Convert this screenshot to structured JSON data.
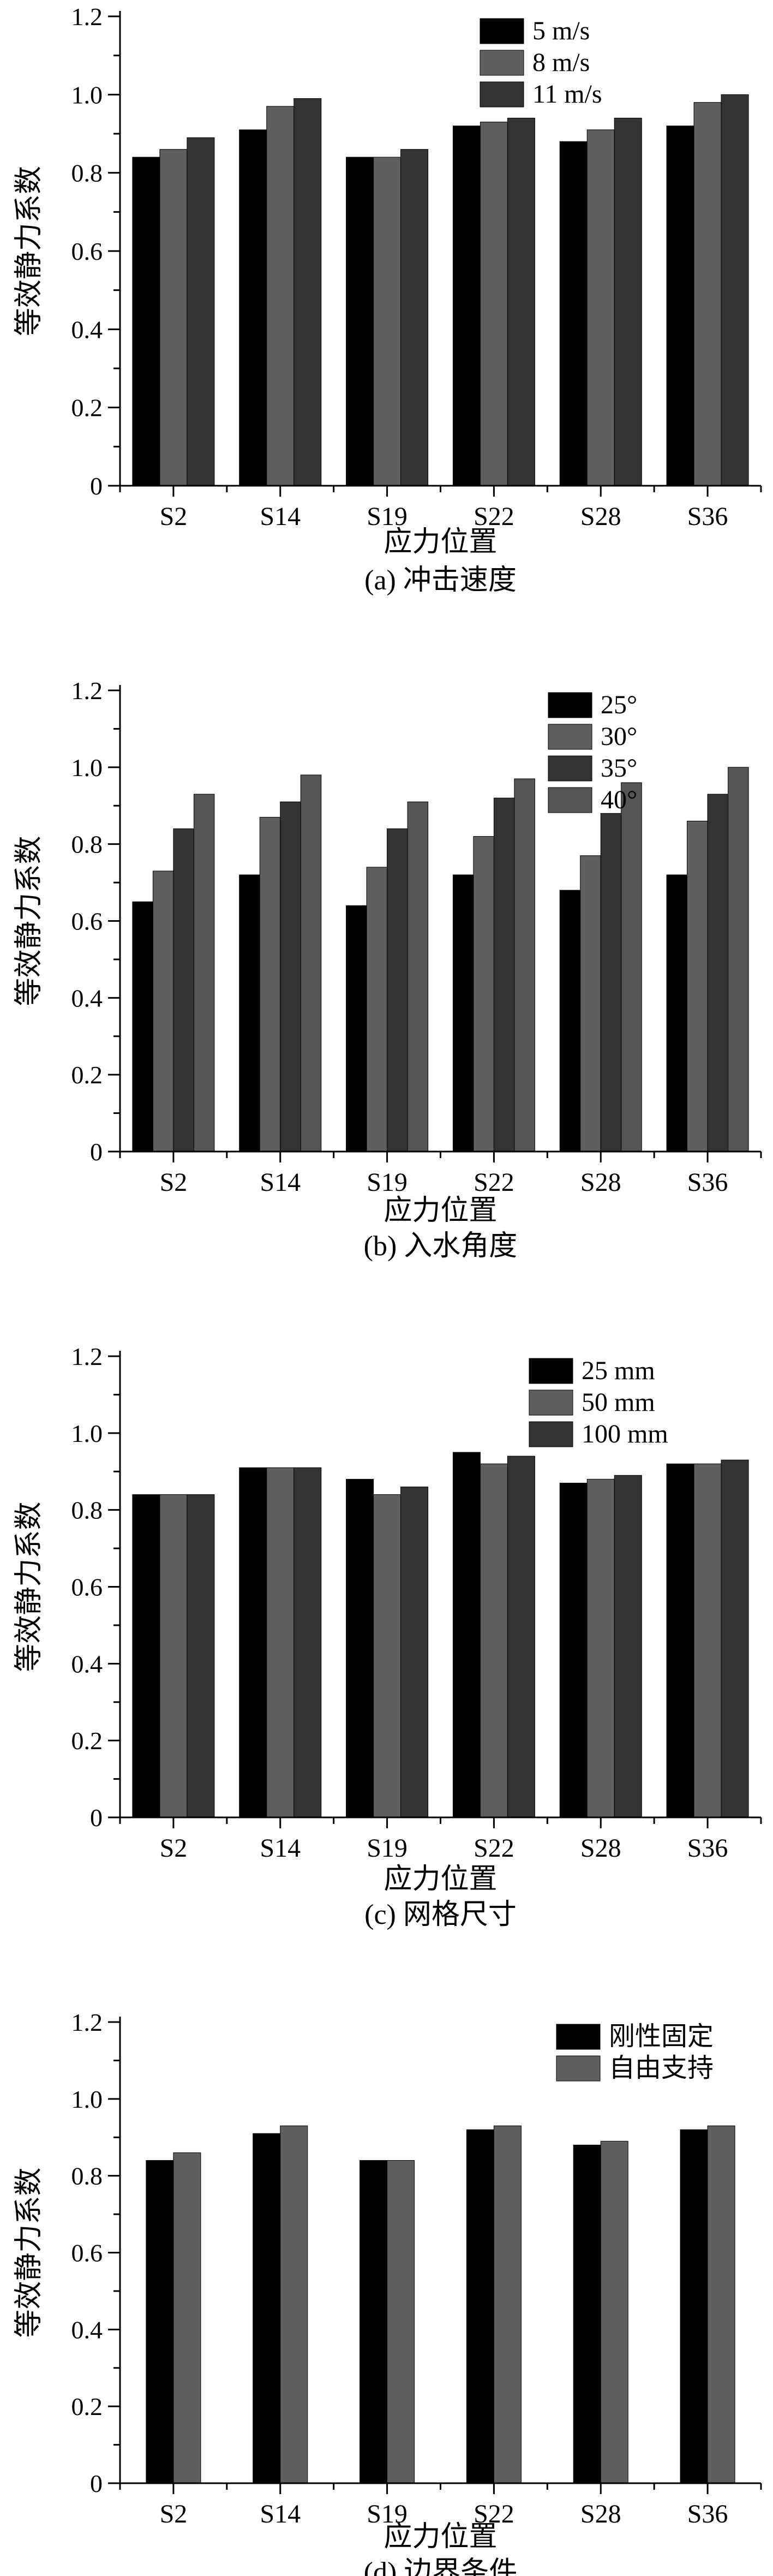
{
  "colors": {
    "s1": "#000000",
    "s2": "#5f5f5f",
    "s3": "#333333",
    "s4": "#555555",
    "axis": "#000000"
  },
  "chart_data": [
    {
      "type": "bar",
      "caption": "(a) 冲击速度",
      "xlabel": "应力位置",
      "ylabel": "等效静力系数",
      "categories": [
        "S2",
        "S14",
        "S19",
        "S22",
        "S28",
        "S36"
      ],
      "ylim": [
        0,
        1.2
      ],
      "yticks": [
        "0",
        "0.2",
        "0.4",
        "0.6",
        "0.8",
        "1.0",
        "1.2"
      ],
      "legend_position": "top-right",
      "series": [
        {
          "name": "5 m/s",
          "values": [
            0.84,
            0.91,
            0.84,
            0.92,
            0.88,
            0.92
          ]
        },
        {
          "name": "8 m/s",
          "values": [
            0.86,
            0.97,
            0.84,
            0.93,
            0.91,
            0.98
          ]
        },
        {
          "name": "11 m/s",
          "values": [
            0.89,
            0.99,
            0.86,
            0.94,
            0.94,
            1.0
          ]
        }
      ]
    },
    {
      "type": "bar",
      "caption": "(b) 入水角度",
      "xlabel": "应力位置",
      "ylabel": "等效静力系数",
      "categories": [
        "S2",
        "S14",
        "S19",
        "S22",
        "S28",
        "S36"
      ],
      "ylim": [
        0,
        1.2
      ],
      "yticks": [
        "0",
        "0.2",
        "0.4",
        "0.6",
        "0.8",
        "1.0",
        "1.2"
      ],
      "legend_position": "top-left",
      "series": [
        {
          "name": "25°",
          "values": [
            0.65,
            0.72,
            0.64,
            0.72,
            0.68,
            0.72
          ]
        },
        {
          "name": "30°",
          "values": [
            0.73,
            0.87,
            0.74,
            0.82,
            0.77,
            0.86
          ]
        },
        {
          "name": "35°",
          "values": [
            0.84,
            0.91,
            0.84,
            0.92,
            0.88,
            0.93
          ]
        },
        {
          "name": "40°",
          "values": [
            0.93,
            0.98,
            0.91,
            0.97,
            0.96,
            1.0
          ]
        }
      ]
    },
    {
      "type": "bar",
      "caption": "(c) 网格尺寸",
      "xlabel": "应力位置",
      "ylabel": "等效静力系数",
      "categories": [
        "S2",
        "S14",
        "S19",
        "S22",
        "S28",
        "S36"
      ],
      "ylim": [
        0,
        1.2
      ],
      "yticks": [
        "0",
        "0.2",
        "0.4",
        "0.6",
        "0.8",
        "1.0",
        "1.2"
      ],
      "legend_position": "top-right",
      "series": [
        {
          "name": "25 mm",
          "values": [
            0.84,
            0.91,
            0.88,
            0.95,
            0.87,
            0.92
          ]
        },
        {
          "name": "50 mm",
          "values": [
            0.84,
            0.91,
            0.84,
            0.92,
            0.88,
            0.92
          ]
        },
        {
          "name": "100 mm",
          "values": [
            0.84,
            0.91,
            0.86,
            0.94,
            0.89,
            0.93
          ]
        }
      ]
    },
    {
      "type": "bar",
      "caption": "(d) 边界条件",
      "xlabel": "应力位置",
      "ylabel": "等效静力系数",
      "categories": [
        "S2",
        "S14",
        "S19",
        "S22",
        "S28",
        "S36"
      ],
      "ylim": [
        0,
        1.2
      ],
      "yticks": [
        "0",
        "0.2",
        "0.4",
        "0.6",
        "0.8",
        "1.0",
        "1.2"
      ],
      "legend_position": "top-right",
      "series": [
        {
          "name": "刚性固定",
          "values": [
            0.84,
            0.91,
            0.84,
            0.92,
            0.88,
            0.92
          ]
        },
        {
          "name": "自由支持",
          "values": [
            0.86,
            0.93,
            0.84,
            0.93,
            0.89,
            0.93
          ]
        }
      ]
    }
  ]
}
